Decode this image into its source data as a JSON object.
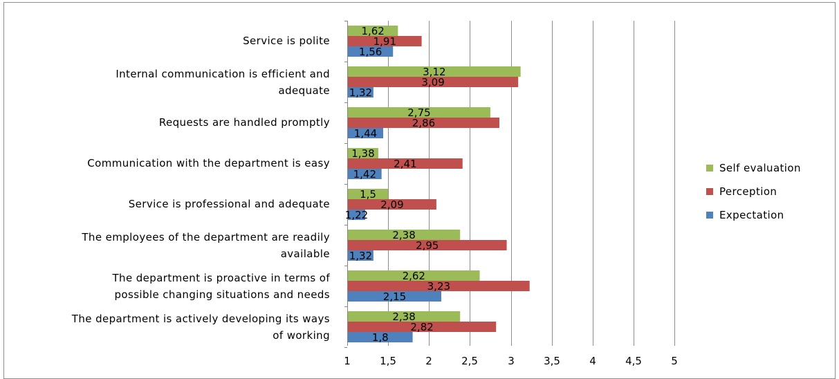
{
  "chart_data": {
    "type": "bar",
    "orientation": "horizontal",
    "categories": [
      [
        "Service is polite"
      ],
      [
        "Internal communication is efficient and",
        "adequate"
      ],
      [
        "Requests are handled promptly"
      ],
      [
        "Communication with the department is easy"
      ],
      [
        "Service is professional and adequate"
      ],
      [
        "The employees of the department are readily",
        "available"
      ],
      [
        "The department is proactive in terms of",
        "possible changing situations and needs"
      ],
      [
        "The department is actively developing its ways",
        "of working"
      ]
    ],
    "series": [
      {
        "name": "Self evaluation",
        "color": "#9bbb59",
        "values": [
          1.62,
          3.12,
          2.75,
          1.38,
          1.5,
          2.38,
          2.62,
          2.38
        ],
        "labels": [
          "1,62",
          "3,12",
          "2,75",
          "1,38",
          "1,5",
          "2,38",
          "2,62",
          "2,38"
        ]
      },
      {
        "name": "Perception",
        "color": "#c0504d",
        "values": [
          1.91,
          3.09,
          2.86,
          2.41,
          2.09,
          2.95,
          3.23,
          2.82
        ],
        "labels": [
          "1,91",
          "3,09",
          "2,86",
          "2,41",
          "2,09",
          "2,95",
          "3,23",
          "2,82"
        ]
      },
      {
        "name": "Expectation",
        "color": "#4f81bd",
        "values": [
          1.56,
          1.32,
          1.44,
          1.42,
          1.22,
          1.32,
          2.15,
          1.8
        ],
        "labels": [
          "1,56",
          "1,32",
          "1,44",
          "1,42",
          "1,22",
          "1,32",
          "2,15",
          "1,8"
        ]
      }
    ],
    "xlim": [
      1,
      5
    ],
    "ticks": [
      "1",
      "1,5",
      "2",
      "2,5",
      "3",
      "3,5",
      "4",
      "4,5",
      "5"
    ],
    "tick_values": [
      1,
      1.5,
      2,
      2.5,
      3,
      3.5,
      4,
      4.5,
      5
    ],
    "grid": true,
    "legend_position": "right"
  }
}
